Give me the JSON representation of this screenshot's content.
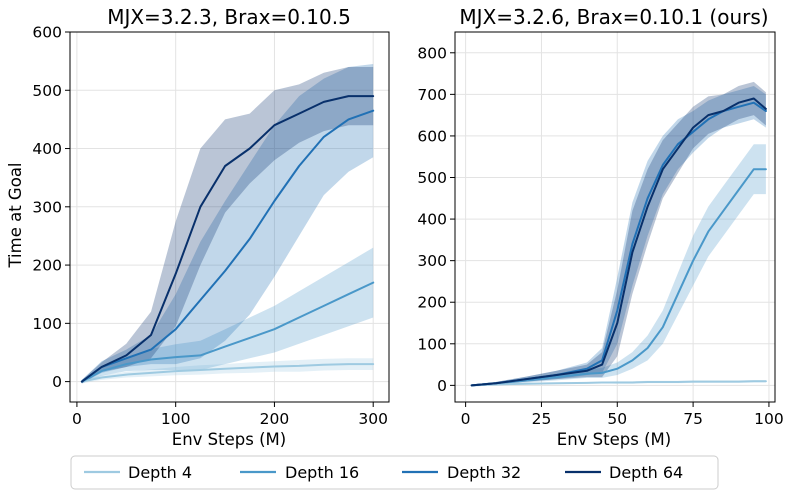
{
  "legend": {
    "items": [
      {
        "label": "Depth 4",
        "color": "#9ecae1"
      },
      {
        "label": "Depth 16",
        "color": "#4a98c9"
      },
      {
        "label": "Depth 32",
        "color": "#2171b5"
      },
      {
        "label": "Depth 64",
        "color": "#08306b"
      }
    ],
    "placement": "bottom-center"
  },
  "chart_data": [
    {
      "type": "line",
      "title": "MJX=3.2.3, Brax=0.10.5",
      "xlabel": "Env Steps (M)",
      "ylabel": "Time at Goal",
      "xlim": [
        -7,
        316
      ],
      "ylim": [
        -35,
        600
      ],
      "xticks": [
        0,
        100,
        200,
        300
      ],
      "yticks": [
        0,
        100,
        200,
        300,
        400,
        500,
        600
      ],
      "grid": true,
      "shaded_band": "variability band around each mean line",
      "x": [
        5,
        25,
        50,
        75,
        100,
        125,
        150,
        175,
        200,
        225,
        250,
        275,
        300
      ],
      "series": [
        {
          "name": "Depth 4",
          "color": "#9ecae1",
          "values": [
            0,
            7,
            12,
            15,
            18,
            20,
            22,
            24,
            26,
            27,
            29,
            30,
            30
          ],
          "band": [
            3,
            4,
            5,
            6,
            7,
            8,
            8,
            9,
            9,
            10,
            10,
            10,
            10
          ]
        },
        {
          "name": "Depth 16",
          "color": "#4a98c9",
          "values": [
            0,
            18,
            30,
            38,
            42,
            45,
            60,
            75,
            90,
            110,
            130,
            150,
            170
          ],
          "band": [
            3,
            8,
            12,
            18,
            22,
            25,
            30,
            35,
            40,
            45,
            50,
            55,
            60
          ]
        },
        {
          "name": "Depth 32",
          "color": "#2171b5",
          "values": [
            0,
            25,
            40,
            55,
            90,
            140,
            190,
            245,
            310,
            370,
            420,
            450,
            465
          ],
          "band": [
            3,
            10,
            15,
            25,
            60,
            100,
            120,
            130,
            130,
            120,
            100,
            90,
            80
          ]
        },
        {
          "name": "Depth 64",
          "color": "#08306b",
          "values": [
            0,
            25,
            45,
            80,
            185,
            300,
            370,
            400,
            440,
            460,
            480,
            490,
            490
          ],
          "band": [
            3,
            8,
            20,
            40,
            90,
            100,
            80,
            60,
            60,
            50,
            50,
            50,
            50
          ]
        }
      ]
    },
    {
      "type": "line",
      "title": "MJX=3.2.6, Brax=0.10.1 (ours)",
      "xlabel": "Env Steps (M)",
      "ylabel": "",
      "xlim": [
        -3.5,
        102
      ],
      "ylim": [
        -40,
        850
      ],
      "xticks": [
        0,
        25,
        50,
        75,
        100
      ],
      "yticks": [
        0,
        100,
        200,
        300,
        400,
        500,
        600,
        700,
        800
      ],
      "grid": true,
      "shaded_band": "variability band around each mean line",
      "x": [
        2,
        10,
        20,
        30,
        40,
        45,
        50,
        55,
        60,
        65,
        70,
        75,
        80,
        85,
        90,
        95,
        99
      ],
      "series": [
        {
          "name": "Depth 4",
          "color": "#9ecae1",
          "values": [
            0,
            2,
            4,
            5,
            6,
            7,
            7,
            7,
            8,
            8,
            8,
            9,
            9,
            9,
            9,
            10,
            10
          ],
          "band": [
            1,
            1,
            2,
            2,
            2,
            2,
            3,
            3,
            3,
            3,
            3,
            3,
            3,
            3,
            3,
            3,
            3
          ]
        },
        {
          "name": "Depth 16",
          "color": "#4a98c9",
          "values": [
            0,
            5,
            12,
            20,
            28,
            30,
            40,
            60,
            90,
            140,
            220,
            300,
            370,
            420,
            470,
            520,
            520
          ],
          "band": [
            2,
            3,
            5,
            8,
            10,
            12,
            15,
            20,
            30,
            40,
            50,
            60,
            60,
            60,
            60,
            60,
            60
          ]
        },
        {
          "name": "Depth 32",
          "color": "#2171b5",
          "values": [
            0,
            5,
            15,
            25,
            40,
            60,
            180,
            340,
            450,
            530,
            580,
            610,
            640,
            660,
            670,
            680,
            660
          ],
          "band": [
            2,
            3,
            6,
            10,
            15,
            30,
            80,
            100,
            90,
            70,
            60,
            50,
            45,
            40,
            40,
            40,
            40
          ]
        },
        {
          "name": "Depth 64",
          "color": "#08306b",
          "values": [
            0,
            5,
            15,
            25,
            35,
            50,
            150,
            320,
            430,
            520,
            570,
            620,
            650,
            660,
            680,
            690,
            665
          ],
          "band": [
            2,
            3,
            6,
            10,
            15,
            30,
            80,
            100,
            90,
            70,
            60,
            50,
            45,
            40,
            40,
            40,
            40
          ]
        }
      ]
    }
  ]
}
